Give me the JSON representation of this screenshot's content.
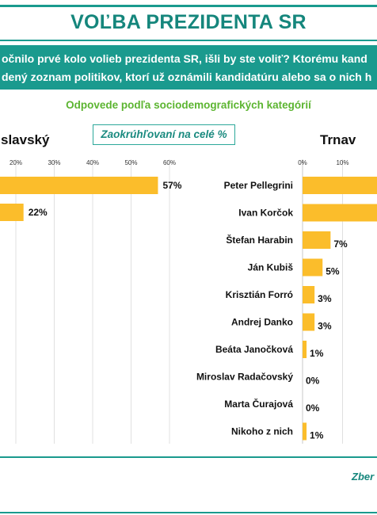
{
  "header": {
    "title": "VOĽBA PREZIDENTA SR",
    "question_line1": "očnilo prvé kolo volieb prezidenta SR, išli by ste voliť? Ktorému kand",
    "question_line2": "dený zoznam politikov, ktorí už oznámili kandidatúru alebo sa o nich h",
    "subtitle": "Odpovede podľa sociodemografických kategórií",
    "rounding_note": "Zaokrúhľovaní na celé %"
  },
  "footer": {
    "source": "Zber"
  },
  "colors": {
    "teal": "#1a9a8e",
    "bar": "#fbbd2b",
    "subtitle_green": "#5cb531"
  },
  "chart_data": [
    {
      "type": "bar",
      "orientation": "horizontal",
      "title": "slavský",
      "xlim": [
        0,
        60
      ],
      "ticks": [
        "20%",
        "30%",
        "40%",
        "50%",
        "60%"
      ],
      "categories": [
        "",
        ""
      ],
      "values": [
        57,
        22
      ],
      "value_labels": [
        "57%",
        "22%"
      ],
      "grid": true
    },
    {
      "type": "bar",
      "orientation": "horizontal",
      "title": "Trnav",
      "xlim": [
        0,
        60
      ],
      "ticks": [
        "0%",
        "10%"
      ],
      "categories": [
        "Peter Pellegrini",
        "Ivan Korčok",
        "Štefan Harabin",
        "Ján Kubiš",
        "Krisztián Forró",
        "Andrej Danko",
        "Beáta Janočková",
        "Miroslav Radačovský",
        "Marta Čurajová",
        "Nikoho z nich"
      ],
      "values": [
        null,
        null,
        7,
        5,
        3,
        3,
        1,
        0,
        0,
        1
      ],
      "value_labels": [
        "",
        "",
        "7%",
        "5%",
        "3%",
        "3%",
        "1%",
        "0%",
        "0%",
        "1%"
      ],
      "grid": true
    }
  ]
}
